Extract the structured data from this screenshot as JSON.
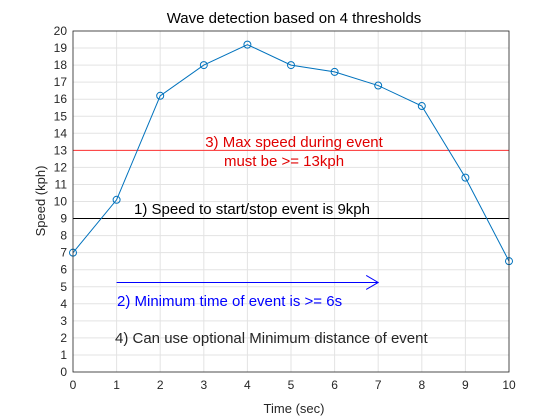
{
  "chart_data": {
    "type": "line",
    "title": "Wave detection based on 4 thresholds",
    "xlabel": "Time (sec)",
    "ylabel": "Speed (kph)",
    "xlim": [
      0,
      10
    ],
    "ylim": [
      0,
      20
    ],
    "xticks": [
      0,
      1,
      2,
      3,
      4,
      5,
      6,
      7,
      8,
      9,
      10
    ],
    "yticks": [
      0,
      1,
      2,
      3,
      4,
      5,
      6,
      7,
      8,
      9,
      10,
      11,
      12,
      13,
      14,
      15,
      16,
      17,
      18,
      19,
      20
    ],
    "grid": true,
    "series": [
      {
        "x": [
          0,
          1,
          2,
          3,
          4,
          5,
          6,
          7,
          8,
          9,
          10
        ],
        "y": [
          7.0,
          10.1,
          16.2,
          18.0,
          19.2,
          18.0,
          17.6,
          16.8,
          15.6,
          11.4,
          6.5
        ],
        "color": "#0072BD",
        "marker": "circle"
      }
    ],
    "reference_lines": [
      {
        "y": 13,
        "color": "#FF3333"
      },
      {
        "y": 9,
        "color": "#000000"
      }
    ],
    "arrow": {
      "x_start": 1,
      "x_end": 7,
      "y": 5.25,
      "color": "#0000FF"
    },
    "annotations": [
      {
        "lines": [
          "3) Max speed during event",
          "must be >= 13kph"
        ],
        "color": "#E00000"
      },
      {
        "lines": [
          "1) Speed to start/stop event is 9kph"
        ],
        "color": "#000000"
      },
      {
        "lines": [
          "2) Minimum time of event is >= 6s"
        ],
        "color": "#0000FF"
      },
      {
        "lines": [
          "4) Can use optional Minimum distance of event"
        ],
        "color": "#262626"
      }
    ]
  }
}
